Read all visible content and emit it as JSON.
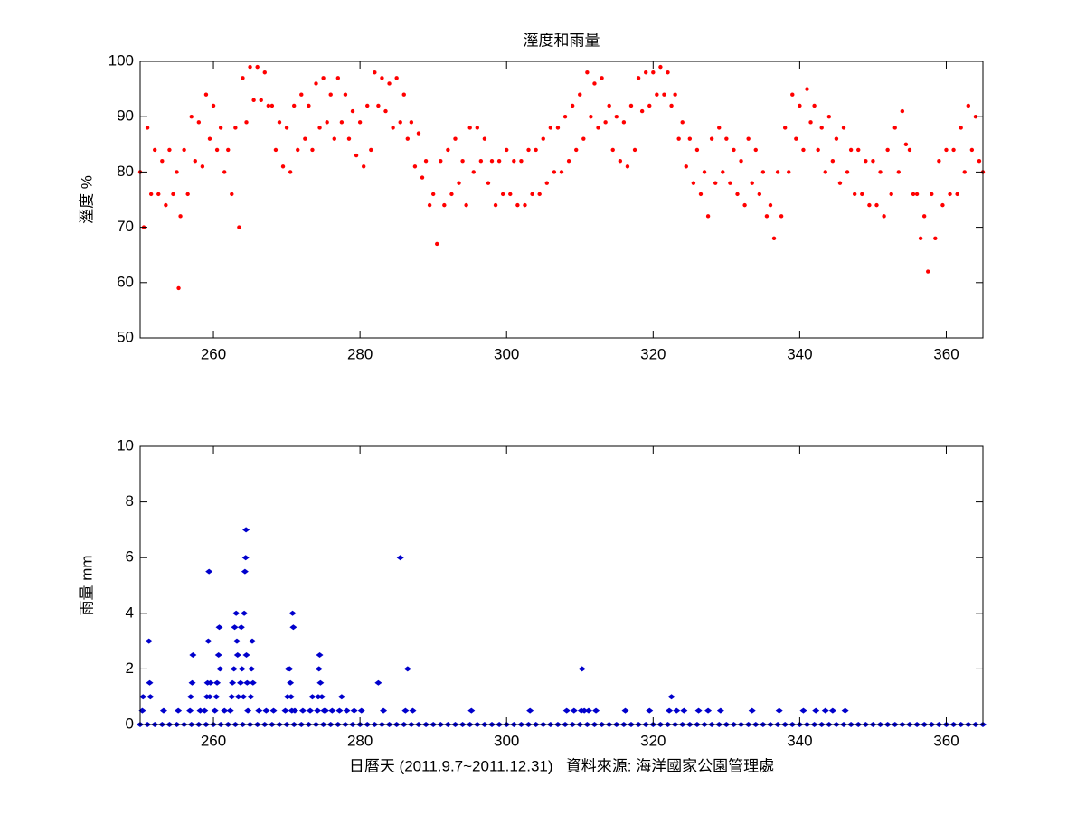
{
  "chart_data": [
    {
      "type": "scatter",
      "title": "溼度和雨量",
      "y_label": "溼度 %",
      "color": "#ff0000",
      "xlim": [
        250,
        365
      ],
      "ylim": [
        50,
        100
      ],
      "xticks": [
        260,
        280,
        300,
        320,
        340,
        360
      ],
      "yticks": [
        50,
        60,
        70,
        80,
        90,
        100
      ],
      "x": [
        250,
        250.5,
        251,
        251.5,
        252,
        252.5,
        253,
        253.5,
        254,
        254.5,
        255,
        255.25,
        255.5,
        256,
        256.5,
        257,
        257.5,
        258,
        258.5,
        259,
        259.5,
        260,
        260.5,
        261,
        261.5,
        262,
        262.5,
        263,
        263.5,
        264,
        264.5,
        265,
        265.5,
        266,
        266.5,
        267,
        267.5,
        268,
        268.5,
        269,
        269.5,
        270,
        270.5,
        271,
        271.5,
        272,
        272.5,
        273,
        273.5,
        274,
        274.5,
        275,
        275.5,
        276,
        276.5,
        277,
        277.5,
        278,
        278.5,
        279,
        279.5,
        280,
        280.5,
        281,
        281.5,
        282,
        282.5,
        283,
        283.5,
        284,
        284.5,
        285,
        285.5,
        286,
        286.5,
        287,
        287.5,
        288,
        288.5,
        289,
        289.5,
        290,
        290.5,
        291,
        291.5,
        292,
        292.5,
        293,
        293.5,
        294,
        294.5,
        295,
        295.5,
        296,
        296.5,
        297,
        297.5,
        298,
        298.5,
        299,
        299.5,
        300,
        300.5,
        301,
        301.5,
        302,
        302.5,
        303,
        303.5,
        304,
        304.5,
        305,
        305.5,
        306,
        306.5,
        307,
        307.5,
        308,
        308.5,
        309,
        309.5,
        310,
        310.5,
        311,
        311.5,
        312,
        312.5,
        313,
        313.5,
        314,
        314.5,
        315,
        315.5,
        316,
        316.5,
        317,
        317.5,
        318,
        318.5,
        319,
        319.5,
        320,
        320.5,
        321,
        321.5,
        322,
        322.5,
        323,
        323.5,
        324,
        324.5,
        325,
        325.5,
        326,
        326.5,
        327,
        327.5,
        328,
        328.5,
        329,
        329.5,
        330,
        330.5,
        331,
        331.5,
        332,
        332.5,
        333,
        333.5,
        334,
        334.5,
        335,
        335.5,
        336,
        336.5,
        337,
        337.5,
        338,
        338.5,
        339,
        339.5,
        340,
        340.5,
        341,
        341.5,
        342,
        342.5,
        343,
        343.5,
        344,
        344.5,
        345,
        345.5,
        346,
        346.5,
        347,
        347.5,
        348,
        348.5,
        349,
        349.5,
        350,
        350.5,
        351,
        351.5,
        352,
        352.5,
        353,
        353.5,
        354,
        354.5,
        355,
        355.5,
        356,
        356.5,
        357,
        357.5,
        358,
        358.5,
        359,
        359.5,
        360,
        360.5,
        361,
        361.5,
        362,
        362.5,
        363,
        363.5,
        364,
        364.5,
        365
      ],
      "values": [
        80,
        70,
        88,
        76,
        84,
        76,
        82,
        74,
        84,
        76,
        80,
        59,
        72,
        84,
        76,
        90,
        82,
        89,
        81,
        94,
        86,
        92,
        84,
        88,
        80,
        84,
        76,
        88,
        70,
        97,
        89,
        99,
        93,
        99,
        93,
        98,
        92,
        92,
        84,
        89,
        81,
        88,
        80,
        92,
        84,
        94,
        86,
        92,
        84,
        96,
        88,
        97,
        89,
        94,
        86,
        97,
        89,
        94,
        86,
        91,
        83,
        89,
        81,
        92,
        84,
        98,
        92,
        97,
        91,
        96,
        88,
        97,
        89,
        94,
        86,
        89,
        81,
        87,
        79,
        82,
        74,
        76,
        67,
        82,
        74,
        84,
        76,
        86,
        78,
        82,
        74,
        88,
        80,
        88,
        82,
        86,
        78,
        82,
        74,
        82,
        76,
        84,
        76,
        82,
        74,
        82,
        74,
        84,
        76,
        84,
        76,
        86,
        78,
        88,
        80,
        88,
        80,
        90,
        82,
        92,
        84,
        94,
        86,
        98,
        90,
        96,
        88,
        97,
        89,
        92,
        84,
        90,
        82,
        89,
        81,
        92,
        84,
        97,
        91,
        98,
        92,
        98,
        94,
        99,
        94,
        98,
        92,
        94,
        86,
        89,
        81,
        86,
        78,
        84,
        76,
        80,
        72,
        86,
        78,
        88,
        80,
        86,
        78,
        84,
        76,
        82,
        74,
        86,
        78,
        84,
        76,
        80,
        72,
        74,
        68,
        80,
        72,
        88,
        80,
        94,
        86,
        92,
        84,
        95,
        89,
        92,
        84,
        88,
        80,
        90,
        82,
        86,
        78,
        88,
        80,
        84,
        76,
        84,
        76,
        82,
        74,
        82,
        74,
        80,
        72,
        84,
        76,
        88,
        80,
        91,
        85,
        84,
        76,
        76,
        68,
        72,
        62,
        76,
        68,
        82,
        74,
        84,
        76,
        84,
        76,
        88,
        80,
        92,
        84,
        90,
        82,
        80
      ]
    },
    {
      "type": "scatter",
      "y_label": "雨量 mm",
      "x_label": "日曆天 (2011.9.7~2011.12.31)   資料來源: 海洋國家公園管理處",
      "color": "#0000cc",
      "xlim": [
        250,
        365
      ],
      "ylim": [
        0,
        10
      ],
      "xticks": [
        260,
        280,
        300,
        320,
        340,
        360
      ],
      "yticks": [
        0,
        2,
        4,
        6,
        8,
        10
      ],
      "x": [
        250,
        251,
        252,
        253,
        254,
        255,
        256,
        257,
        258,
        259,
        260,
        261,
        262,
        263,
        264,
        265,
        266,
        267,
        268,
        269,
        270,
        271,
        272,
        273,
        274,
        275,
        276,
        277,
        278,
        279,
        280,
        281,
        282,
        283,
        284,
        285,
        286,
        287,
        288,
        289,
        290,
        291,
        292,
        293,
        294,
        295,
        296,
        297,
        298,
        299,
        300,
        301,
        302,
        303,
        304,
        305,
        306,
        307,
        308,
        309,
        310,
        311,
        312,
        313,
        314,
        315,
        316,
        317,
        318,
        319,
        320,
        321,
        322,
        323,
        324,
        325,
        326,
        327,
        328,
        329,
        330,
        331,
        332,
        333,
        334,
        335,
        336,
        337,
        338,
        339,
        340,
        341,
        342,
        343,
        344,
        345,
        346,
        347,
        348,
        349,
        350,
        351,
        352,
        353,
        354,
        355,
        356,
        357,
        358,
        359,
        360,
        361,
        362,
        363,
        364,
        365,
        250.3,
        250.4,
        251.2,
        251.3,
        251.4,
        253.2,
        255.2,
        256.8,
        256.9,
        257.1,
        257.2,
        258.2,
        258.8,
        259.1,
        259.2,
        259.3,
        259.4,
        259.5,
        259.6,
        260.2,
        260.4,
        260.5,
        260.7,
        260.8,
        260.9,
        261.5,
        262.3,
        262.5,
        262.6,
        262.8,
        262.9,
        263.1,
        263.2,
        263.3,
        263.4,
        263.7,
        263.8,
        263.9,
        264.1,
        264.2,
        264.3,
        264.4,
        264.45,
        264.5,
        264.6,
        264.7,
        265.1,
        265.2,
        265.3,
        265.4,
        266.2,
        267.2,
        268.2,
        269.8,
        270.1,
        270.2,
        270.4,
        270.5,
        270.6,
        270.7,
        270.8,
        270.9,
        271.1,
        272.2,
        273.2,
        273.5,
        274.2,
        274.3,
        274.4,
        274.5,
        274.6,
        274.8,
        275.1,
        275.3,
        276.2,
        277.2,
        277.5,
        278.2,
        279.2,
        280.2,
        282.5,
        283.2,
        285.5,
        286.2,
        286.5,
        287.2,
        295.2,
        303.2,
        308.2,
        309.2,
        310.2,
        310.3,
        310.6,
        311.2,
        312.2,
        316.2,
        319.5,
        322.2,
        322.5,
        323.2,
        324.2,
        326.2,
        327.5,
        329.2,
        333.5,
        337.2,
        340.5,
        342.2,
        343.5,
        344.5,
        346.2
      ],
      "values": [
        0,
        0,
        0,
        0,
        0,
        0,
        0,
        0,
        0,
        0,
        0,
        0,
        0,
        0,
        0,
        0,
        0,
        0,
        0,
        0,
        0,
        0,
        0,
        0,
        0,
        0,
        0,
        0,
        0,
        0,
        0,
        0,
        0,
        0,
        0,
        0,
        0,
        0,
        0,
        0,
        0,
        0,
        0,
        0,
        0,
        0,
        0,
        0,
        0,
        0,
        0,
        0,
        0,
        0,
        0,
        0,
        0,
        0,
        0,
        0,
        0,
        0,
        0,
        0,
        0,
        0,
        0,
        0,
        0,
        0,
        0,
        0,
        0,
        0,
        0,
        0,
        0,
        0,
        0,
        0,
        0,
        0,
        0,
        0,
        0,
        0,
        0,
        0,
        0,
        0,
        0,
        0,
        0,
        0,
        0,
        0,
        0,
        0,
        0,
        0,
        0,
        0,
        0,
        0,
        0,
        0,
        0,
        0,
        0,
        0,
        0,
        0,
        0,
        0,
        0,
        0,
        0.5,
        1,
        3,
        1.5,
        1,
        0.5,
        0.5,
        0.5,
        1,
        1.5,
        2.5,
        0.5,
        0.5,
        1,
        1.5,
        3,
        5.5,
        1,
        1.5,
        0.5,
        1,
        1.5,
        2.5,
        3.5,
        2,
        0.5,
        0.5,
        1,
        1.5,
        2,
        3.5,
        4,
        3,
        2.5,
        1,
        1.5,
        3.5,
        2,
        1,
        4,
        5.5,
        6,
        7,
        2.5,
        1.5,
        0.5,
        1,
        2,
        3,
        1.5,
        0.5,
        0.5,
        0.5,
        0.5,
        1,
        2,
        2,
        1.5,
        1,
        0.5,
        4,
        3.5,
        0.5,
        0.5,
        0.5,
        1,
        0.5,
        1,
        2,
        2.5,
        1.5,
        1,
        0.5,
        0.5,
        0.5,
        0.5,
        1,
        0.5,
        0.5,
        0.5,
        1.5,
        0.5,
        6,
        0.5,
        2,
        0.5,
        0.5,
        0.5,
        0.5,
        0.5,
        0.5,
        2,
        0.5,
        0.5,
        0.5,
        0.5,
        0.5,
        0.5,
        1,
        0.5,
        0.5,
        0.5,
        0.5,
        0.5,
        0.5,
        0.5,
        0.5,
        0.5,
        0.5,
        0.5,
        0.5
      ]
    }
  ]
}
